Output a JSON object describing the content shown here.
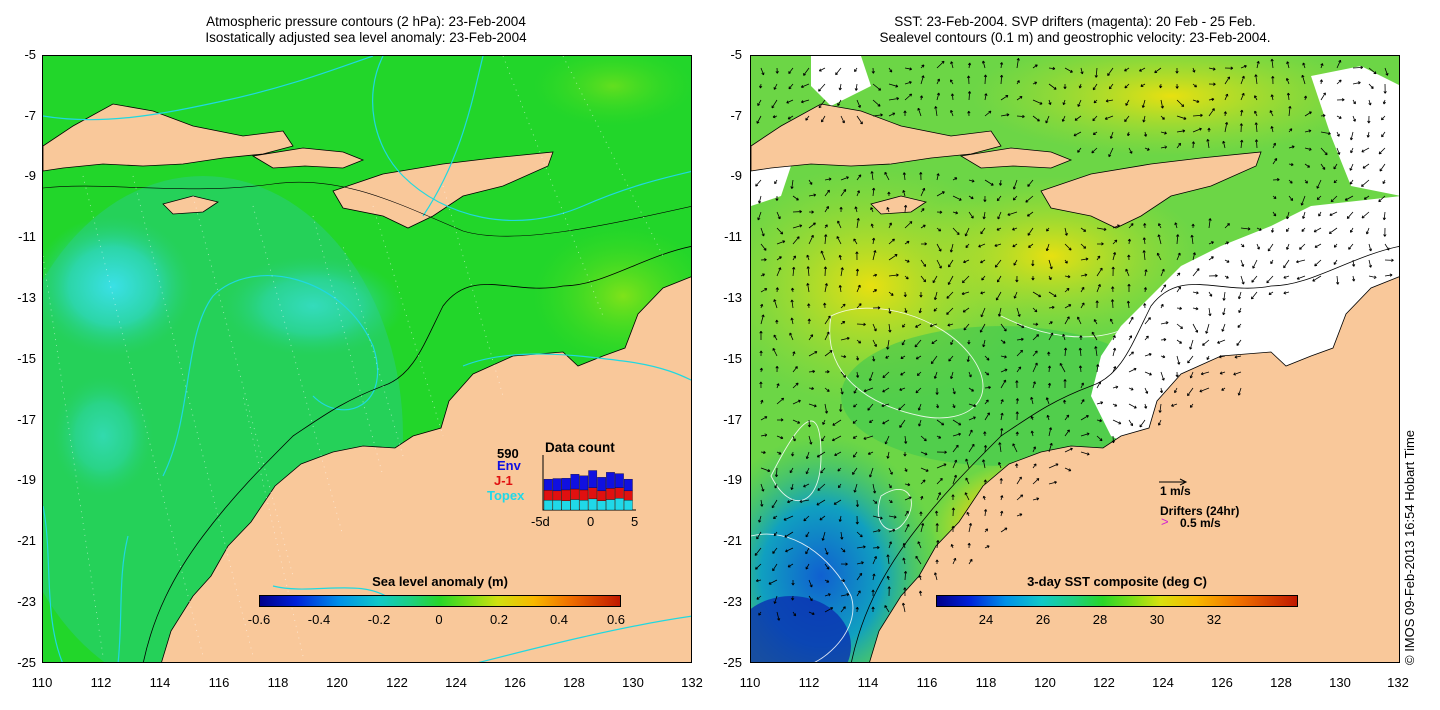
{
  "left_panel": {
    "title_line1": "Atmospheric pressure contours (2 hPa): 23-Feb-2004",
    "title_line2": "Isostatically adjusted sea level anomaly: 23-Feb-2004",
    "colorbar": {
      "title": "Sea level anomaly (m)",
      "ticks": [
        "-0.6",
        "-0.4",
        "-0.2",
        "0",
        "0.2",
        "0.4",
        "0.6"
      ]
    },
    "data_count": {
      "title": "Data count",
      "total": "590",
      "missions": [
        {
          "name": "Env",
          "color": "#1010e0"
        },
        {
          "name": "J-1",
          "color": "#e01010"
        },
        {
          "name": "Topex",
          "color": "#20d8e8"
        }
      ],
      "axis_labels": [
        "-5d",
        "0",
        "5"
      ],
      "bars": [
        {
          "topex": 0.32,
          "j1": 0.32,
          "env": 0.36
        },
        {
          "topex": 0.32,
          "j1": 0.3,
          "env": 0.4
        },
        {
          "topex": 0.3,
          "j1": 0.35,
          "env": 0.38
        },
        {
          "topex": 0.34,
          "j1": 0.34,
          "env": 0.48
        },
        {
          "topex": 0.32,
          "j1": 0.33,
          "env": 0.46
        },
        {
          "topex": 0.36,
          "j1": 0.36,
          "env": 0.56
        },
        {
          "topex": 0.3,
          "j1": 0.32,
          "env": 0.44
        },
        {
          "topex": 0.34,
          "j1": 0.36,
          "env": 0.52
        },
        {
          "topex": 0.38,
          "j1": 0.34,
          "env": 0.46
        },
        {
          "topex": 0.32,
          "j1": 0.3,
          "env": 0.38
        }
      ]
    }
  },
  "right_panel": {
    "title_line1": "SST: 23-Feb-2004. SVP drifters (magenta): 20 Feb - 25 Feb.",
    "title_line2": "Sealevel contours (0.1 m) and geostrophic velocity: 23-Feb-2004.",
    "colorbar": {
      "title": "3-day SST composite (deg C)",
      "ticks": [
        "24",
        "26",
        "28",
        "30",
        "32"
      ]
    },
    "legend": {
      "velocity_label": "1 m/s",
      "drifters_label": "Drifters (24hr)",
      "drifter_speed_label": "0.5 m/s"
    }
  },
  "axes": {
    "y_ticks": [
      "-5",
      "-7",
      "-9",
      "-11",
      "-13",
      "-15",
      "-17",
      "-19",
      "-21",
      "-23",
      "-25"
    ],
    "x_ticks": [
      "110",
      "112",
      "114",
      "116",
      "118",
      "120",
      "122",
      "124",
      "126",
      "128",
      "130",
      "132"
    ]
  },
  "copyright": "© IMOS 09-Feb-2013 16:54 Hobart Time",
  "colors": {
    "land": "#f9c89a",
    "sla_background": "#22d62a",
    "sst_background": "#6cd646",
    "pressure_contour": "#20d8e0"
  }
}
